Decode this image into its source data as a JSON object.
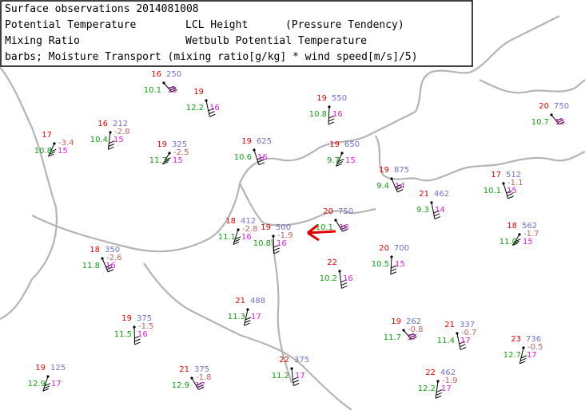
{
  "legend": {
    "rows": [
      [
        "Surface observations 2014081008"
      ],
      [
        "Potential Temperature",
        "LCL Height",
        "(Pressure Tendency)"
      ],
      [
        "Mixing Ratio",
        "Wetbulb Potential Temperature"
      ],
      [
        "barbs; Moisture Transport (mixing ratio[g/kg] * wind speed[m/s]/5)"
      ]
    ]
  },
  "stations": [
    {
      "temp": "16",
      "lcl": "250",
      "mixing": "10.1",
      "wetbulb": "15"
    },
    {
      "temp": "19",
      "mixing": "12.2",
      "wetbulb": "16"
    },
    {
      "temp": "16",
      "lcl": "212",
      "tendency": "-2.8",
      "mixing": "10.4",
      "wetbulb": "15"
    },
    {
      "temp": "19",
      "lcl": "325",
      "tendency": "-2.5",
      "mixing": "11.7",
      "wetbulb": "15"
    },
    {
      "temp": "19",
      "lcl": "625",
      "mixing": "10.6",
      "wetbulb": "16"
    },
    {
      "temp": "19",
      "lcl": "550",
      "mixing": "10.8",
      "wetbulb": "16"
    },
    {
      "temp": "19",
      "lcl": "650",
      "mixing": "9.7",
      "wetbulb": "15"
    },
    {
      "temp": "19",
      "lcl": "875",
      "mixing": "9.4",
      "wetbulb": "14"
    },
    {
      "temp": "19",
      "lcl": "500",
      "tendency": "-1.9",
      "mixing": "10.8",
      "wetbulb": "16"
    },
    {
      "temp": "18",
      "lcl": "412",
      "tendency": "-2.8",
      "mixing": "11.1",
      "wetbulb": "16"
    },
    {
      "temp": "20",
      "lcl": "750",
      "mixing": "10.1",
      "wetbulb": "16"
    },
    {
      "temp": "22",
      "mixing": "10.2",
      "wetbulb": "16"
    },
    {
      "temp": "21",
      "lcl": "488",
      "mixing": "11.3",
      "wetbulb": "17"
    },
    {
      "temp": "19",
      "lcl": "262",
      "tendency": "-0.8",
      "mixing": "11.7",
      "wetbulb": "17"
    },
    {
      "temp": "21",
      "lcl": "337",
      "tendency": "-0.7",
      "mixing": "11.4",
      "wetbulb": "17"
    },
    {
      "temp": "22",
      "lcl": "462",
      "tendency": "-1.9",
      "mixing": "12.2",
      "wetbulb": "17"
    },
    {
      "temp": "18",
      "lcl": "562",
      "tendency": "-1.7",
      "mixing": "11.0",
      "wetbulb": "15"
    },
    {
      "temp": "17",
      "lcl": "512",
      "tendency": "-1.1",
      "mixing": "10.1",
      "wetbulb": "15"
    },
    {
      "temp": "20",
      "lcl": "700",
      "mixing": "10.5",
      "wetbulb": "15"
    },
    {
      "temp": "17",
      "tendency": "-3.4",
      "mixing": "10.8",
      "wetbulb": "15"
    },
    {
      "temp": "18",
      "lcl": "350",
      "tendency": "-2.6",
      "mixing": "11.8",
      "wetbulb": "16"
    },
    {
      "temp": "19",
      "lcl": "375",
      "tendency": "-1.5",
      "mixing": "11.5",
      "wetbulb": "16"
    },
    {
      "temp": "19",
      "lcl": "125",
      "mixing": "12.9",
      "wetbulb": "17"
    },
    {
      "temp": "21",
      "lcl": "375",
      "tendency": "-1.8",
      "mixing": "12.9",
      "wetbulb": "17"
    },
    {
      "temp": "22",
      "lcl": "375",
      "mixing": "11.2",
      "wetbulb": "17"
    },
    {
      "temp": "23",
      "lcl": "736",
      "tendency": "-0.5",
      "mixing": "12.7",
      "wetbulb": "17"
    },
    {
      "temp": "20",
      "lcl": "750",
      "mixing": "10.7",
      "wetbulb": "15"
    },
    {
      "temp": "21",
      "lcl": "462",
      "mixing": "9.3",
      "wetbulb": "14"
    }
  ]
}
